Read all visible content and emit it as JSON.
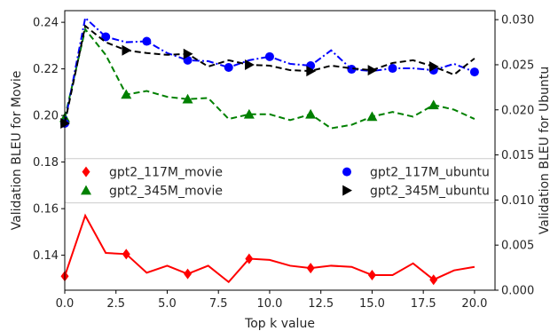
{
  "chart_data": {
    "type": "line",
    "xlabel": "Top k value",
    "ylabel_left": "Validation BLEU for Movie",
    "ylabel_right": "Validation BLEU for Ubuntu",
    "xlim": [
      0,
      21
    ],
    "ylim_left": [
      0.125,
      0.245
    ],
    "ylim_right": [
      0.0,
      0.031
    ],
    "grid": false,
    "legend_placement": "middle (inside plot, two columns)",
    "xticks": [
      "0.0",
      "2.5",
      "5.0",
      "7.5",
      "10.0",
      "12.5",
      "15.0",
      "17.5",
      "20.0"
    ],
    "yticks_left": [
      "0.14",
      "0.16",
      "0.18",
      "0.20",
      "0.22",
      "0.24"
    ],
    "yticks_right": [
      "0.000",
      "0.005",
      "0.010",
      "0.015",
      "0.020",
      "0.025",
      "0.030"
    ],
    "x": [
      0,
      1,
      2,
      3,
      4,
      5,
      6,
      7,
      8,
      9,
      10,
      11,
      12,
      13,
      14,
      15,
      16,
      17,
      18,
      19,
      20
    ],
    "series": [
      {
        "name": "gpt2_117M_movie",
        "axis": "left",
        "color": "#ff0000",
        "linestyle": "solid",
        "marker": "diamond",
        "marker_every": 3,
        "values": [
          0.131,
          0.157,
          0.141,
          0.1405,
          0.1325,
          0.1355,
          0.132,
          0.1355,
          0.1285,
          0.1385,
          0.138,
          0.1355,
          0.1345,
          0.1355,
          0.135,
          0.1315,
          0.1315,
          0.1365,
          0.1295,
          0.1335,
          0.135
        ]
      },
      {
        "name": "gpt2_345M_movie",
        "axis": "left",
        "color": "#008000",
        "linestyle": "dashed",
        "marker": "triangle-up",
        "marker_every": 3,
        "values": [
          0.199,
          0.237,
          0.226,
          0.209,
          0.2105,
          0.208,
          0.207,
          0.2075,
          0.1985,
          0.2005,
          0.2005,
          0.198,
          0.2005,
          0.1945,
          0.196,
          0.1995,
          0.2015,
          0.1995,
          0.2045,
          0.2025,
          0.1985
        ]
      },
      {
        "name": "gpt2_117M_ubuntu",
        "axis": "right",
        "color": "#0000ff",
        "linestyle": "dashdot",
        "marker": "circle",
        "marker_every": 2,
        "values": [
          0.0185,
          0.0302,
          0.0281,
          0.0275,
          0.0276,
          0.0263,
          0.0255,
          0.0254,
          0.0247,
          0.0255,
          0.0259,
          0.0251,
          0.0249,
          0.0266,
          0.0245,
          0.0243,
          0.0246,
          0.0246,
          0.0244,
          0.0251,
          0.0242
        ]
      },
      {
        "name": "gpt2_345M_ubuntu",
        "axis": "right",
        "color": "#000000",
        "linestyle": "dashed",
        "marker": "triangle-right",
        "marker_every": 3,
        "values": [
          0.0185,
          0.0293,
          0.0275,
          0.0266,
          0.0263,
          0.0261,
          0.0262,
          0.0248,
          0.0255,
          0.025,
          0.0249,
          0.0244,
          0.0243,
          0.0249,
          0.0246,
          0.0244,
          0.0252,
          0.0255,
          0.0248,
          0.0239,
          0.0257
        ]
      }
    ]
  }
}
